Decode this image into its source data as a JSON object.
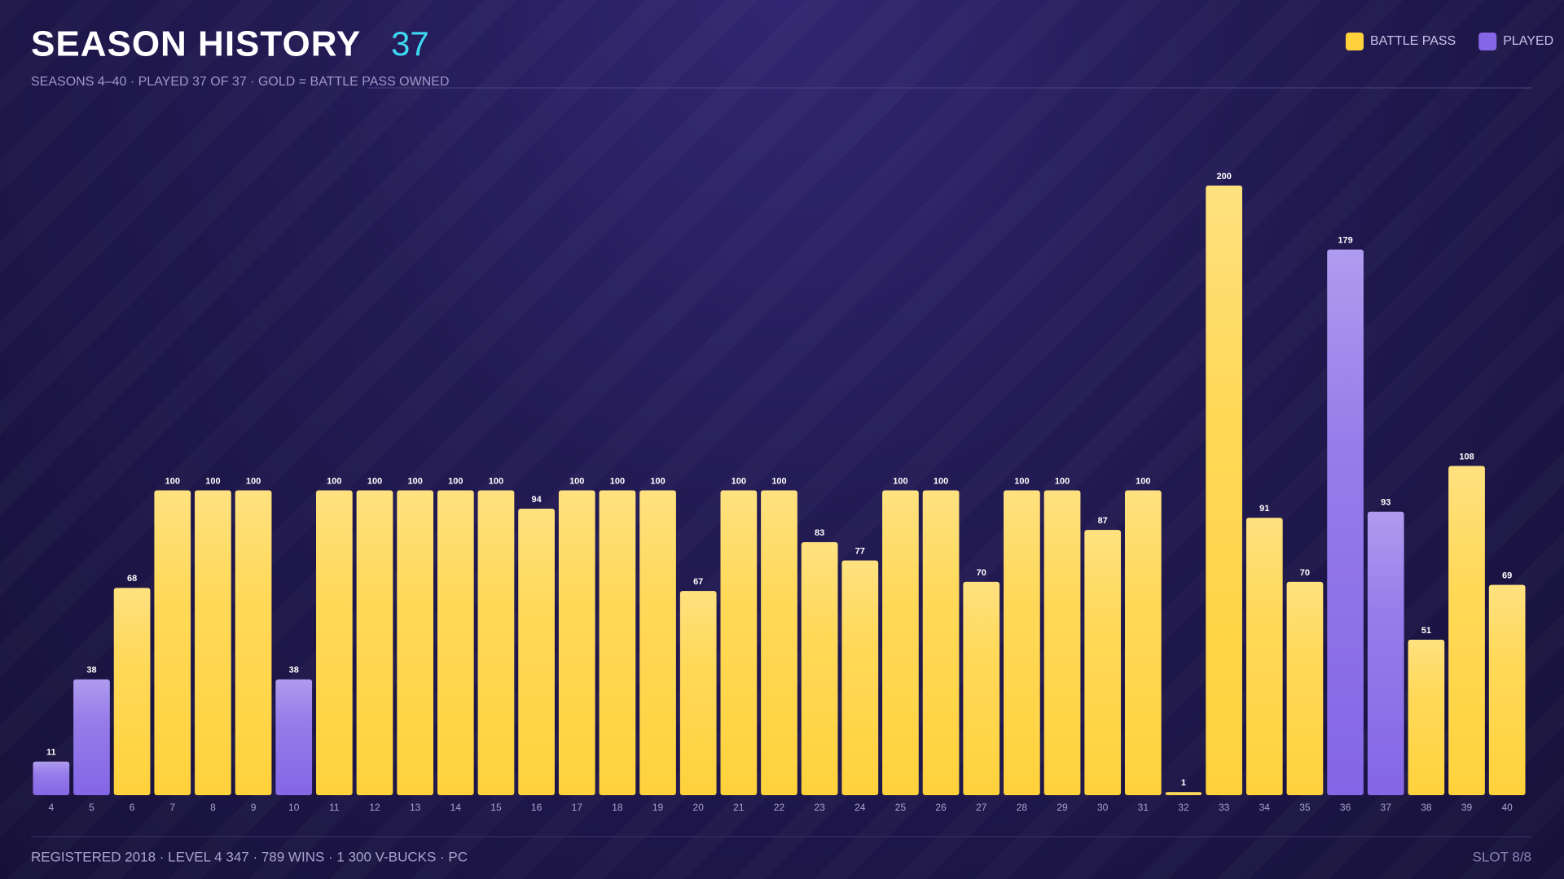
{
  "chart_data": {
    "type": "bar",
    "title": "SEASON HISTORY",
    "title_count": "37",
    "subtitle": "SEASONS 4–40 · PLAYED 37 OF 37 · GOLD = BATTLE PASS OWNED",
    "footer": "REGISTERED 2018 · LEVEL 4 347 · 789 WINS · 1 300 V-BUCKS · PC",
    "footer_right": "SLOT 8/8",
    "categories": [
      "4",
      "5",
      "6",
      "7",
      "8",
      "9",
      "10",
      "11",
      "12",
      "13",
      "14",
      "15",
      "16",
      "17",
      "18",
      "19",
      "20",
      "21",
      "22",
      "23",
      "24",
      "25",
      "26",
      "27",
      "28",
      "29",
      "30",
      "31",
      "32",
      "33",
      "34",
      "35",
      "36",
      "37",
      "38",
      "39",
      "40"
    ],
    "series": [
      {
        "name": "BATTLE PASS",
        "color": "#ffd23c",
        "values": [
          null,
          null,
          68,
          100,
          100,
          100,
          null,
          100,
          100,
          100,
          100,
          100,
          94,
          100,
          100,
          100,
          67,
          100,
          100,
          83,
          77,
          100,
          100,
          70,
          100,
          100,
          87,
          100,
          1,
          200,
          91,
          70,
          null,
          null,
          51,
          108,
          69
        ]
      },
      {
        "name": "PLAYED",
        "color": "#8466e6",
        "values": [
          11,
          38,
          null,
          null,
          null,
          null,
          38,
          null,
          null,
          null,
          null,
          null,
          null,
          null,
          null,
          null,
          null,
          null,
          null,
          null,
          null,
          null,
          null,
          null,
          null,
          null,
          null,
          null,
          null,
          null,
          null,
          null,
          179,
          93,
          null,
          null,
          null
        ]
      }
    ],
    "legend": "top-right"
  }
}
